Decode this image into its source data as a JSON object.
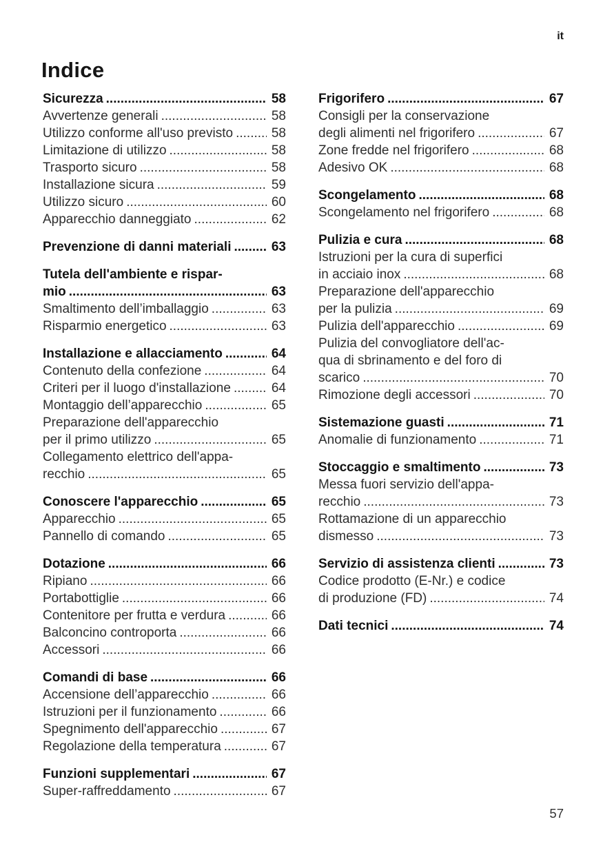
{
  "page": {
    "lang_marker": "it",
    "title": "Indice",
    "page_number": "57",
    "text_color": "#2e2e2e",
    "background_color": "#ffffff"
  },
  "toc": {
    "columns": [
      {
        "sections": [
          {
            "title_lines": [
              "Sicurezza"
            ],
            "title_page": "58",
            "entries": [
              {
                "lines": [
                  "Avvertenze generali"
                ],
                "page": "58"
              },
              {
                "lines": [
                  "Utilizzo conforme all'uso previsto"
                ],
                "page": "58"
              },
              {
                "lines": [
                  "Limitazione di utilizzo"
                ],
                "page": "58"
              },
              {
                "lines": [
                  "Trasporto sicuro"
                ],
                "page": "58"
              },
              {
                "lines": [
                  "Installazione sicura"
                ],
                "page": "59"
              },
              {
                "lines": [
                  "Utilizzo sicuro"
                ],
                "page": "60"
              },
              {
                "lines": [
                  "Apparecchio danneggiato"
                ],
                "page": "62"
              }
            ]
          },
          {
            "title_lines": [
              "Prevenzione di danni materiali"
            ],
            "title_page": "63",
            "entries": []
          },
          {
            "title_lines": [
              "Tutela dell'ambiente e rispar-",
              "mio"
            ],
            "title_page": "63",
            "entries": [
              {
                "lines": [
                  "Smaltimento dell’imballaggio"
                ],
                "page": "63"
              },
              {
                "lines": [
                  "Risparmio energetico"
                ],
                "page": "63"
              }
            ]
          },
          {
            "title_lines": [
              "Installazione e allacciamento"
            ],
            "title_page": "64",
            "entries": [
              {
                "lines": [
                  "Contenuto della confezione"
                ],
                "page": "64"
              },
              {
                "lines": [
                  "Criteri per il luogo d'installazione"
                ],
                "page": "64"
              },
              {
                "lines": [
                  "Montaggio dell’apparecchio"
                ],
                "page": "65"
              },
              {
                "lines": [
                  "Preparazione dell'apparecchio",
                  "per il primo utilizzo"
                ],
                "page": "65"
              },
              {
                "lines": [
                  "Collegamento elettrico dell'appa-",
                  "recchio"
                ],
                "page": "65"
              }
            ]
          },
          {
            "title_lines": [
              "Conoscere l'apparecchio"
            ],
            "title_page": "65",
            "entries": [
              {
                "lines": [
                  "Apparecchio"
                ],
                "page": "65"
              },
              {
                "lines": [
                  "Pannello di comando"
                ],
                "page": "65"
              }
            ]
          },
          {
            "title_lines": [
              "Dotazione"
            ],
            "title_page": "66",
            "entries": [
              {
                "lines": [
                  "Ripiano"
                ],
                "page": "66"
              },
              {
                "lines": [
                  "Portabottiglie"
                ],
                "page": "66"
              },
              {
                "lines": [
                  "Contenitore per frutta e verdura"
                ],
                "page": "66"
              },
              {
                "lines": [
                  "Balconcino controporta"
                ],
                "page": "66"
              },
              {
                "lines": [
                  "Accessori"
                ],
                "page": "66"
              }
            ]
          },
          {
            "title_lines": [
              "Comandi di base"
            ],
            "title_page": "66",
            "entries": [
              {
                "lines": [
                  "Accensione dell’apparecchio"
                ],
                "page": "66"
              },
              {
                "lines": [
                  "Istruzioni per il funzionamento"
                ],
                "page": "66"
              },
              {
                "lines": [
                  "Spegnimento dell'apparecchio"
                ],
                "page": "67"
              },
              {
                "lines": [
                  "Regolazione della temperatura"
                ],
                "page": "67"
              }
            ]
          },
          {
            "title_lines": [
              "Funzioni supplementari"
            ],
            "title_page": "67",
            "entries": [
              {
                "lines": [
                  "Super-raffreddamento"
                ],
                "page": "67"
              }
            ]
          }
        ]
      },
      {
        "sections": [
          {
            "title_lines": [
              "Frigorifero"
            ],
            "title_page": "67",
            "entries": [
              {
                "lines": [
                  "Consigli per la conservazione",
                  "degli alimenti nel frigorifero"
                ],
                "page": "67"
              },
              {
                "lines": [
                  "Zone fredde nel frigorifero"
                ],
                "page": "68"
              },
              {
                "lines": [
                  "Adesivo OK"
                ],
                "page": "68"
              }
            ]
          },
          {
            "title_lines": [
              "Scongelamento"
            ],
            "title_page": "68",
            "entries": [
              {
                "lines": [
                  "Scongelamento nel frigorifero"
                ],
                "page": "68"
              }
            ]
          },
          {
            "title_lines": [
              "Pulizia e cura"
            ],
            "title_page": "68",
            "entries": [
              {
                "lines": [
                  "Istruzioni per la cura di superfici",
                  "in acciaio inox"
                ],
                "page": "68"
              },
              {
                "lines": [
                  "Preparazione dell'apparecchio",
                  "per la pulizia"
                ],
                "page": "69"
              },
              {
                "lines": [
                  "Pulizia dell'apparecchio"
                ],
                "page": "69"
              },
              {
                "lines": [
                  "Pulizia del convogliatore dell'ac-",
                  "qua di sbrinamento e del foro di",
                  "scarico"
                ],
                "page": "70"
              },
              {
                "lines": [
                  "Rimozione degli accessori"
                ],
                "page": "70"
              }
            ]
          },
          {
            "title_lines": [
              "Sistemazione guasti"
            ],
            "title_page": "71",
            "entries": [
              {
                "lines": [
                  "Anomalie di funzionamento"
                ],
                "page": "71"
              }
            ]
          },
          {
            "title_lines": [
              "Stoccaggio e smaltimento"
            ],
            "title_page": "73",
            "entries": [
              {
                "lines": [
                  "Messa fuori servizio dell'appa-",
                  "recchio"
                ],
                "page": "73"
              },
              {
                "lines": [
                  "Rottamazione di un apparecchio",
                  "dismesso"
                ],
                "page": "73"
              }
            ]
          },
          {
            "title_lines": [
              "Servizio di assistenza clienti"
            ],
            "title_page": "73",
            "entries": [
              {
                "lines": [
                  "Codice prodotto (E-Nr.) e codice",
                  "di produzione (FD)"
                ],
                "page": "74"
              }
            ]
          },
          {
            "title_lines": [
              "Dati tecnici"
            ],
            "title_page": "74",
            "entries": []
          }
        ]
      }
    ]
  }
}
